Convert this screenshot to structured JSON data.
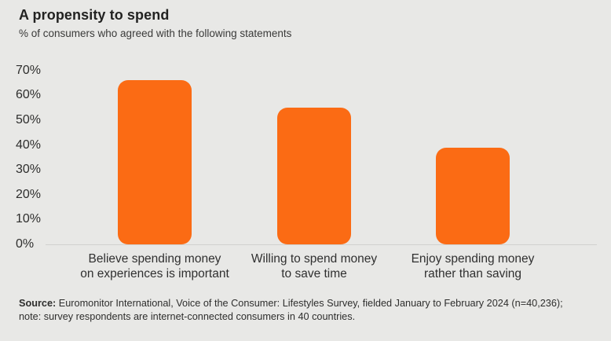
{
  "page": {
    "background": "#E8E8E6"
  },
  "chart_data": {
    "type": "bar",
    "title": "A propensity to spend",
    "subtitle": "% of consumers who agreed with the following statements",
    "categories": [
      "Believe spending money\non experiences is important",
      "Willing to spend money\nto save time",
      "Enjoy spending money\nrather than saving"
    ],
    "values": [
      66,
      55,
      39
    ],
    "unit": "%",
    "ylim": [
      0,
      70
    ],
    "ytick_step": 10,
    "yticks": [
      "70%",
      "60%",
      "50%",
      "40%",
      "30%",
      "20%",
      "10%",
      "0%"
    ],
    "bar_color": "#FB6B14",
    "axis_color": "#D0D0CE",
    "text_color": "#2E2E2D",
    "grid": false,
    "legend": false
  },
  "source": {
    "label": "Source:",
    "text": " Euromonitor International, Voice of the Consumer: Lifestyles Survey, fielded January to February 2024 (n=40,236); note: survey respondents are internet-connected consumers in 40 countries."
  }
}
